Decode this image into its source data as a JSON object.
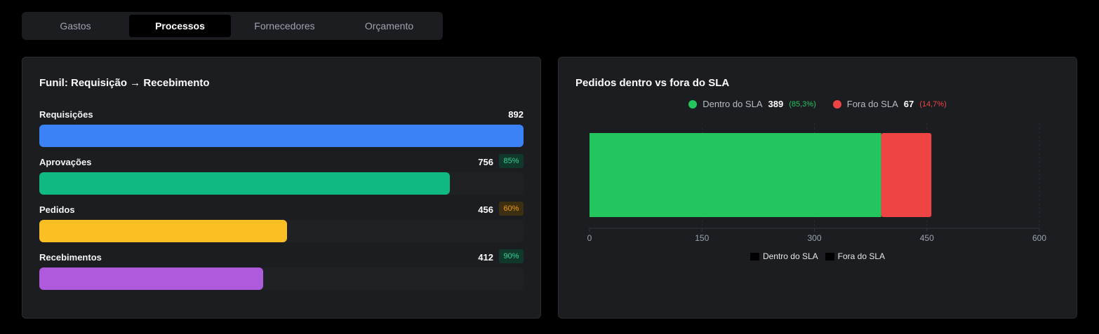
{
  "tabs": [
    {
      "label": "Gastos",
      "active": false
    },
    {
      "label": "Processos",
      "active": true
    },
    {
      "label": "Fornecedores",
      "active": false
    },
    {
      "label": "Orçamento",
      "active": false
    }
  ],
  "funnel": {
    "title": "Funil: Requisição → Recebimento",
    "max": 892,
    "stages": [
      {
        "label": "Requisições",
        "value": 892,
        "badge": "",
        "color": "#3b82f6",
        "badge_color": "",
        "badge_bg": ""
      },
      {
        "label": "Aprovações",
        "value": 756,
        "badge": "85%",
        "color": "#10b981",
        "badge_color": "#34d399",
        "badge_bg": "#10392c"
      },
      {
        "label": "Pedidos",
        "value": 456,
        "badge": "60%",
        "color": "#fbbf24",
        "badge_color": "#f59e0b",
        "badge_bg": "#3d3012"
      },
      {
        "label": "Recebimentos",
        "value": 412,
        "badge": "90%",
        "color": "#ad5bdc",
        "badge_color": "#34d399",
        "badge_bg": "#10392c"
      }
    ]
  },
  "sla": {
    "title": "Pedidos dentro vs fora do SLA",
    "legend": [
      {
        "label": "Dentro do SLA",
        "value": "389",
        "pct": "(85,3%)",
        "color": "#22c55e",
        "pct_color": "#22c55e"
      },
      {
        "label": "Fora do SLA",
        "value": "67",
        "pct": "(14,7%)",
        "color": "#ef4444",
        "pct_color": "#ef4444"
      }
    ],
    "bottom_legend": [
      "Dentro do SLA",
      "Fora do SLA"
    ]
  },
  "chart_data": {
    "type": "bar",
    "orientation": "horizontal",
    "stacked": true,
    "categories": [
      ""
    ],
    "series": [
      {
        "name": "Dentro do SLA",
        "values": [
          389
        ],
        "color": "#22c55e"
      },
      {
        "name": "Fora do SLA",
        "values": [
          67
        ],
        "color": "#ef4444"
      }
    ],
    "xlim": [
      0,
      600
    ],
    "xticks": [
      0,
      150,
      300,
      450,
      600
    ],
    "grid": true,
    "legend": "bottom"
  }
}
